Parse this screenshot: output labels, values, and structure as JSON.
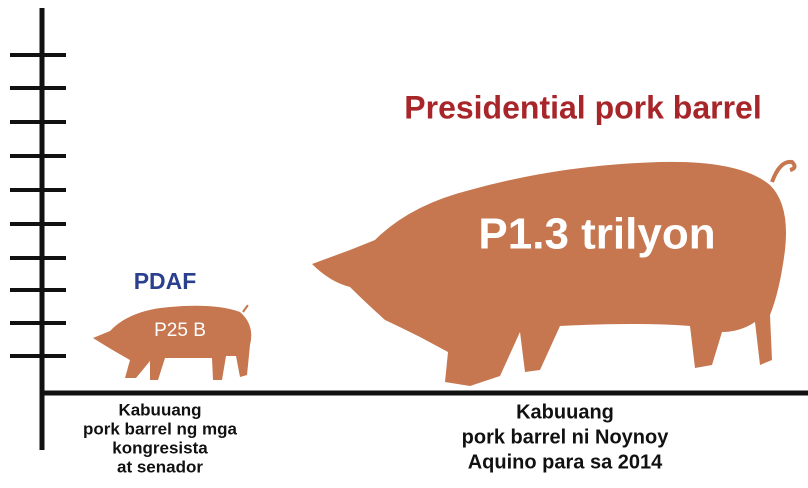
{
  "items": [
    {
      "name": "PDAF",
      "value_label": "P25 B",
      "caption": [
        "Kabuuang",
        "pork barrel ng mga",
        "kongresista",
        "at senador"
      ]
    },
    {
      "name": "Presidential pork barrel",
      "value_label": "P1.3 trilyon",
      "caption": [
        "Kabuuang",
        "pork barrel ni Noynoy",
        "Aquino para sa 2014"
      ]
    }
  ]
}
